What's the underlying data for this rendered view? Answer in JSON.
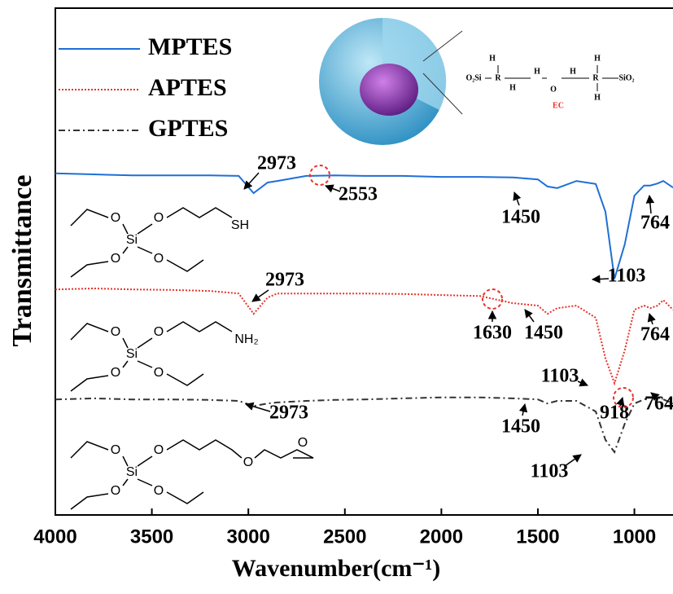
{
  "chart_data": {
    "type": "line",
    "x_label": "Wavenumber(cm⁻¹)",
    "y_label": "Transmittance",
    "x": [
      4000,
      3800,
      3600,
      3400,
      3200,
      3050,
      2973,
      2900,
      2850,
      2700,
      2553,
      2400,
      2200,
      2000,
      1800,
      1630,
      1500,
      1450,
      1400,
      1300,
      1200,
      1150,
      1103,
      1050,
      1000,
      950,
      918,
      880,
      850,
      800
    ],
    "series": [
      {
        "name": "MPTES",
        "color": "#1f6fd6",
        "style": "solid",
        "values": [
          67.4,
          67.2,
          67.0,
          67.0,
          67.0,
          66.9,
          63.5,
          65.6,
          65.9,
          66.9,
          67.0,
          66.9,
          66.9,
          66.7,
          66.7,
          66.6,
          66.2,
          64.8,
          64.5,
          65.9,
          65.3,
          59.8,
          46.6,
          53.4,
          63.0,
          65.0,
          65.0,
          65.4,
          65.9,
          64.6
        ]
      },
      {
        "name": "APTES",
        "color": "#e8322a",
        "style": "dotted",
        "values": [
          44.5,
          44.7,
          44.5,
          44.4,
          44.2,
          43.7,
          39.7,
          42.9,
          43.7,
          43.7,
          43.7,
          43.7,
          43.6,
          43.4,
          43.2,
          41.8,
          41.3,
          39.7,
          40.8,
          41.3,
          38.9,
          30.9,
          26.0,
          32.5,
          40.5,
          41.3,
          40.8,
          41.3,
          42.4,
          40.5
        ]
      },
      {
        "name": "GPTES",
        "color": "#333333",
        "style": "dashdot",
        "values": [
          22.8,
          23.0,
          22.8,
          22.8,
          22.7,
          22.5,
          21.5,
          22.0,
          22.2,
          22.5,
          22.7,
          22.8,
          23.0,
          23.2,
          23.2,
          23.0,
          22.8,
          22.0,
          22.5,
          22.5,
          20.4,
          14.8,
          12.4,
          18.0,
          22.0,
          22.8,
          23.2,
          23.2,
          22.8,
          22.0
        ]
      }
    ],
    "xlim": [
      4000,
      800
    ],
    "xticks": [
      4000,
      3500,
      3000,
      2500,
      2000,
      1500,
      1000
    ],
    "ylim": [
      0,
      100
    ],
    "legend": "upper-left",
    "annotations": [
      "2973",
      "2553",
      "1450",
      "764",
      "1103",
      "2973",
      "1630",
      "1450",
      "764",
      "1103",
      "2973",
      "1450",
      "918",
      "764",
      "1103"
    ],
    "structures": [
      {
        "atoms": [
          "O",
          "O",
          "Si",
          "O",
          "O",
          "SH"
        ]
      },
      {
        "atoms": [
          "O",
          "O",
          "Si",
          "O",
          "O",
          "NH₂"
        ]
      },
      {
        "atoms": [
          "O",
          "O",
          "Si",
          "O",
          "O",
          "O",
          "O"
        ]
      }
    ],
    "inset_labels": [
      "O₂Si",
      "H",
      "R",
      "H",
      "H",
      "O",
      "EC",
      "H",
      "H",
      "R",
      "H",
      "SiO₂"
    ]
  }
}
